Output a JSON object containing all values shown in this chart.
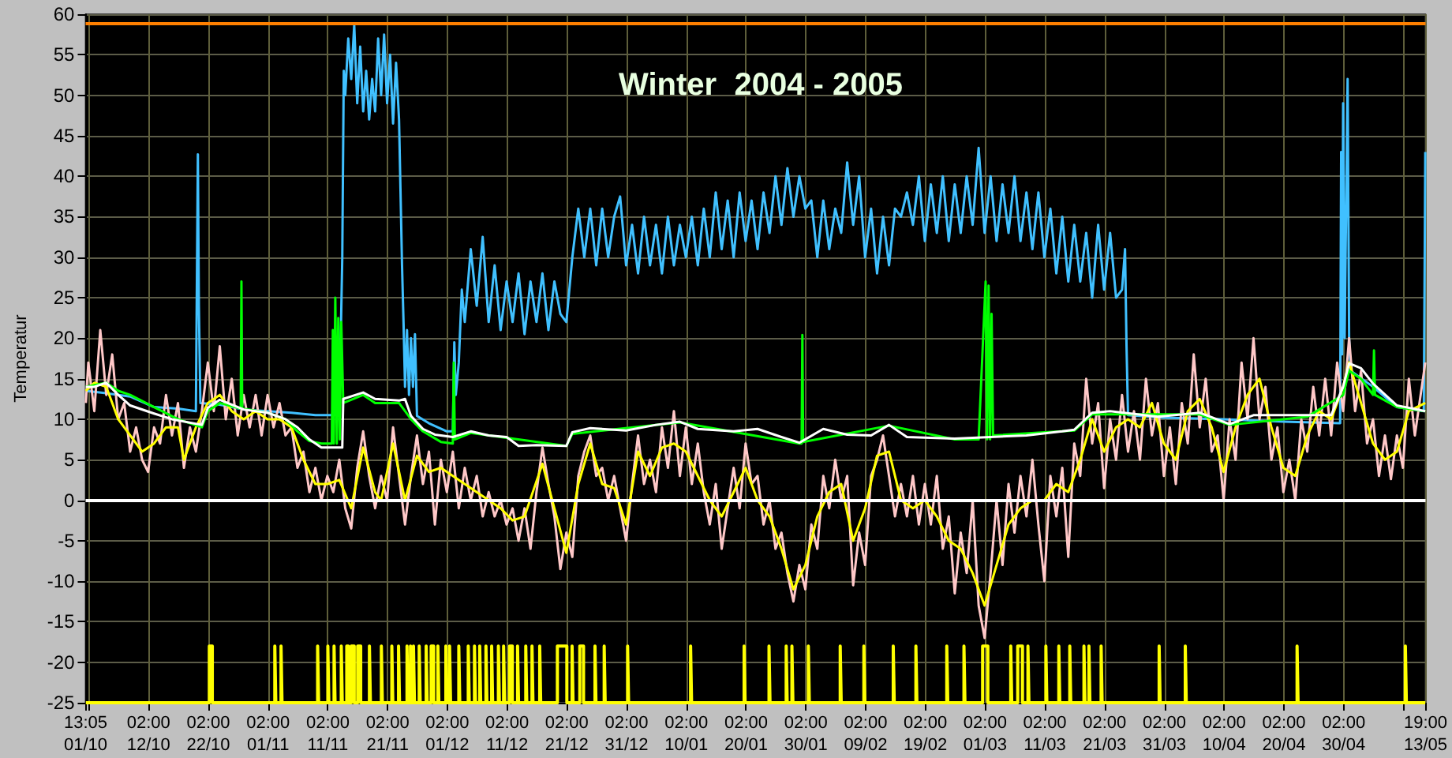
{
  "chart_data": {
    "type": "line",
    "title": "Winter  2004 - 2005",
    "ylabel": "Temperatur",
    "xlim": [
      "2004-10-01T13:05",
      "2005-05-13T19:00"
    ],
    "xticks": [
      {
        "value": "2004-10-01T13:05",
        "label": "13:05\n01/10"
      },
      {
        "value": "2004-10-02T02:00",
        "label": null
      },
      {
        "value": "2004-10-12T02:00",
        "label": "02:00\n12/10"
      },
      {
        "value": "2004-10-22T02:00",
        "label": "02:00\n22/10"
      },
      {
        "value": "2004-11-01T02:00",
        "label": "02:00\n01/11"
      },
      {
        "value": "2004-11-11T02:00",
        "label": "02:00\n11/11"
      },
      {
        "value": "2004-11-21T02:00",
        "label": "02:00\n21/11"
      },
      {
        "value": "2004-12-01T02:00",
        "label": "02:00\n01/12"
      },
      {
        "value": "2004-12-11T02:00",
        "label": "02:00\n11/12"
      },
      {
        "value": "2004-12-21T02:00",
        "label": "02:00\n21/12"
      },
      {
        "value": "2004-12-31T02:00",
        "label": "02:00\n31/12"
      },
      {
        "value": "2005-01-10T02:00",
        "label": "02:00\n10/01"
      },
      {
        "value": "2005-01-20T02:00",
        "label": "02:00\n20/01"
      },
      {
        "value": "2005-01-30T02:00",
        "label": "02:00\n30/01"
      },
      {
        "value": "2005-02-09T02:00",
        "label": "02:00\n09/02"
      },
      {
        "value": "2005-02-19T02:00",
        "label": "02:00\n19/02"
      },
      {
        "value": "2005-03-01T02:00",
        "label": "02:00\n01/03"
      },
      {
        "value": "2005-03-11T02:00",
        "label": "02:00\n11/03"
      },
      {
        "value": "2005-03-21T02:00",
        "label": "02:00\n21/03"
      },
      {
        "value": "2005-03-31T02:00",
        "label": "02:00\n31/03"
      },
      {
        "value": "2005-04-10T02:00",
        "label": "02:00\n10/04"
      },
      {
        "value": "2005-04-20T02:00",
        "label": "02:00\n20/04"
      },
      {
        "value": "2005-04-30T02:00",
        "label": "02:00\n30/04"
      },
      {
        "value": "2005-05-10T02:00",
        "label": null
      },
      {
        "value": "2005-05-13T19:00",
        "label": "19:00\n13/05"
      }
    ],
    "ylim": [
      -25,
      60
    ],
    "yticks": [
      -25,
      -20,
      -15,
      -10,
      -5,
      0,
      5,
      10,
      15,
      20,
      25,
      30,
      35,
      40,
      45,
      50,
      55,
      60
    ],
    "grid": true,
    "ref_lines": [
      {
        "axis": "y",
        "value": 0,
        "color": "#ffffff"
      },
      {
        "axis": "y",
        "value": 58.8,
        "color": "#ff8000"
      }
    ],
    "series": [
      {
        "color": "#40c0ff",
        "x": [
          "2004-10-01T14:00",
          "2004-10-05",
          "2004-10-09",
          "2004-10-13",
          "2004-10-17",
          "2004-10-20",
          "2004-10-20T08:00",
          "2004-10-20T12:00",
          "2004-10-20T18:00",
          "2004-10-24",
          "2004-10-28",
          "2004-11-01",
          "2004-11-05",
          "2004-11-09",
          "2004-11-13",
          "2004-11-13T12:00",
          "2004-11-13T18:00",
          "2004-11-14",
          "2004-11-14T12:00",
          "2004-11-15",
          "2004-11-15T12:00",
          "2004-11-16",
          "2004-11-16T12:00",
          "2004-11-17",
          "2004-11-17T12:00",
          "2004-11-18",
          "2004-11-18T12:00",
          "2004-11-19",
          "2004-11-19T12:00",
          "2004-11-20",
          "2004-11-20T12:00",
          "2004-11-21",
          "2004-11-21T12:00",
          "2004-11-22",
          "2004-11-22T12:00",
          "2004-11-23",
          "2004-11-23T12:00",
          "2004-11-23T18:00",
          "2004-11-24",
          "2004-11-24T08:00",
          "2004-11-24T16:00",
          "2004-11-25",
          "2004-11-25T08:00",
          "2004-11-25T16:00",
          "2004-11-26",
          "2004-11-28",
          "2004-12-01",
          "2004-12-02",
          "2004-12-02T06:00",
          "2004-12-02T12:00",
          "2004-12-03",
          "2004-12-03T12:00",
          "2004-12-04",
          "2004-12-05",
          "2004-12-06",
          "2004-12-07",
          "2004-12-08",
          "2004-12-09",
          "2004-12-10",
          "2004-12-11",
          "2004-12-12",
          "2004-12-13",
          "2004-12-14",
          "2004-12-15",
          "2004-12-16",
          "2004-12-17",
          "2004-12-18",
          "2004-12-19",
          "2004-12-20",
          "2004-12-21",
          "2004-12-22",
          "2004-12-23",
          "2004-12-24",
          "2004-12-25",
          "2004-12-26",
          "2004-12-27",
          "2004-12-28",
          "2004-12-29",
          "2004-12-30",
          "2004-12-31",
          "2005-01-01",
          "2005-01-02",
          "2005-01-03",
          "2005-01-04",
          "2005-01-05",
          "2005-01-06",
          "2005-01-07",
          "2005-01-08",
          "2005-01-09",
          "2005-01-10",
          "2005-01-11",
          "2005-01-12",
          "2005-01-13",
          "2005-01-14",
          "2005-01-15",
          "2005-01-16",
          "2005-01-17",
          "2005-01-18",
          "2005-01-19",
          "2005-01-20",
          "2005-01-21",
          "2005-01-22",
          "2005-01-23",
          "2005-01-24",
          "2005-01-25",
          "2005-01-26",
          "2005-01-27",
          "2005-01-28",
          "2005-01-29",
          "2005-01-30",
          "2005-01-31",
          "2005-02-01",
          "2005-02-02",
          "2005-02-03",
          "2005-02-04",
          "2005-02-05",
          "2005-02-06",
          "2005-02-07",
          "2005-02-08",
          "2005-02-09",
          "2005-02-10",
          "2005-02-11",
          "2005-02-12",
          "2005-02-13",
          "2005-02-14",
          "2005-02-15",
          "2005-02-16",
          "2005-02-17",
          "2005-02-18",
          "2005-02-19",
          "2005-02-20",
          "2005-02-21",
          "2005-02-22",
          "2005-02-23",
          "2005-02-24",
          "2005-02-25",
          "2005-02-26",
          "2005-02-27",
          "2005-02-28",
          "2005-03-01",
          "2005-03-02",
          "2005-03-03",
          "2005-03-04",
          "2005-03-05",
          "2005-03-06",
          "2005-03-07",
          "2005-03-08",
          "2005-03-09",
          "2005-03-10",
          "2005-03-11",
          "2005-03-12",
          "2005-03-13",
          "2005-03-14",
          "2005-03-15",
          "2005-03-16",
          "2005-03-17",
          "2005-03-18",
          "2005-03-19",
          "2005-03-20",
          "2005-03-21",
          "2005-03-22",
          "2005-03-23",
          "2005-03-24",
          "2005-03-24T12:00",
          "2005-03-24T18:00",
          "2005-03-25",
          "2005-03-31",
          "2005-04-10",
          "2005-04-20",
          "2005-04-29T12:00",
          "2005-04-29T16:00",
          "2005-04-29T20:00",
          "2005-04-30",
          "2005-04-30T06:00",
          "2005-04-30T18:00",
          "2005-05-01",
          "2005-05-01T06:00",
          "2005-05-05",
          "2005-05-09",
          "2005-05-13T12:00",
          "2005-05-13T18:00"
        ],
        "values": [
          13.5,
          13.2,
          12.8,
          11.5,
          11.3,
          11,
          42.7,
          24,
          12,
          11.8,
          11.2,
          11,
          10.8,
          10.5,
          10.5,
          30,
          53,
          50,
          57,
          52,
          58.7,
          49,
          56,
          48,
          53,
          47,
          52,
          48,
          57,
          50,
          57.5,
          49,
          55,
          46.5,
          54,
          47,
          29,
          22,
          14,
          21,
          13,
          20,
          14,
          20.5,
          10.4,
          9.5,
          8.5,
          8.5,
          19.5,
          13,
          17,
          26,
          22,
          31,
          24,
          32.5,
          22,
          29,
          21,
          27,
          22,
          28,
          20.5,
          27,
          22,
          28,
          21,
          27,
          23,
          22,
          30,
          36,
          30,
          36,
          29,
          36,
          30,
          35,
          37.5,
          29,
          34,
          28,
          35,
          29,
          34,
          28,
          35,
          29,
          34,
          30,
          35,
          29,
          36,
          30,
          38,
          31,
          37,
          30,
          38,
          32,
          37,
          31,
          38,
          33,
          40,
          34,
          41,
          35,
          40,
          36,
          37,
          30,
          37,
          31,
          36,
          33,
          41.7,
          34,
          40,
          30,
          36,
          28,
          35,
          29,
          36,
          35,
          38,
          34,
          40,
          32,
          39,
          33,
          40,
          32,
          39,
          33,
          40,
          34,
          43.5,
          33,
          40,
          32,
          39,
          33,
          40,
          32,
          38,
          31,
          38,
          30,
          36,
          28,
          35,
          27,
          34,
          27,
          33,
          25,
          34,
          26,
          33,
          25,
          26,
          31,
          19,
          10.5,
          10.2,
          10,
          9.7,
          9.5,
          43,
          18,
          49,
          20,
          52,
          20,
          16,
          14,
          11.5,
          11,
          43
        ]
      },
      {
        "color": "#ffc8c8",
        "x": [
          "2004-10-01T14:00",
          "2004-10-02",
          "2004-10-03",
          "2004-10-04",
          "2004-10-05",
          "2004-10-06",
          "2004-10-07",
          "2004-10-08",
          "2004-10-09",
          "2004-10-10",
          "2004-10-11",
          "2004-10-12",
          "2004-10-13",
          "2004-10-14",
          "2004-10-15",
          "2004-10-16",
          "2004-10-17",
          "2004-10-18",
          "2004-10-19",
          "2004-10-20",
          "2004-10-21",
          "2004-10-22",
          "2004-10-23",
          "2004-10-24",
          "2004-10-25",
          "2004-10-26",
          "2004-10-27",
          "2004-10-28",
          "2004-10-29",
          "2004-10-30",
          "2004-10-31",
          "2004-11-01",
          "2004-11-02",
          "2004-11-03",
          "2004-11-04",
          "2004-11-05",
          "2004-11-06",
          "2004-11-07",
          "2004-11-08",
          "2004-11-09",
          "2004-11-10",
          "2004-11-11",
          "2004-11-12",
          "2004-11-13",
          "2004-11-14",
          "2004-11-15",
          "2004-11-16",
          "2004-11-17",
          "2004-11-18",
          "2004-11-19",
          "2004-11-20",
          "2004-11-21",
          "2004-11-22",
          "2004-11-23",
          "2004-11-24",
          "2004-11-25",
          "2004-11-26",
          "2004-11-27",
          "2004-11-28",
          "2004-11-29",
          "2004-11-30",
          "2004-12-01",
          "2004-12-02",
          "2004-12-03",
          "2004-12-04",
          "2004-12-05",
          "2004-12-06",
          "2004-12-07",
          "2004-12-08",
          "2004-12-09",
          "2004-12-10",
          "2004-12-11",
          "2004-12-12",
          "2004-12-13",
          "2004-12-14",
          "2004-12-15",
          "2004-12-16",
          "2004-12-17",
          "2004-12-18",
          "2004-12-19",
          "2004-12-20",
          "2004-12-21",
          "2004-12-22",
          "2004-12-23",
          "2004-12-24",
          "2004-12-25",
          "2004-12-26",
          "2004-12-27",
          "2004-12-28",
          "2004-12-29",
          "2004-12-30",
          "2004-12-31",
          "2005-01-01",
          "2005-01-02",
          "2005-01-03",
          "2005-01-04",
          "2005-01-05",
          "2005-01-06",
          "2005-01-07",
          "2005-01-08",
          "2005-01-09",
          "2005-01-10",
          "2005-01-11",
          "2005-01-12",
          "2005-01-13",
          "2005-01-14",
          "2005-01-15",
          "2005-01-16",
          "2005-01-17",
          "2005-01-18",
          "2005-01-19",
          "2005-01-20",
          "2005-01-21",
          "2005-01-22",
          "2005-01-23",
          "2005-01-24",
          "2005-01-25",
          "2005-01-26",
          "2005-01-27",
          "2005-01-28",
          "2005-01-29",
          "2005-01-30",
          "2005-01-31",
          "2005-02-01",
          "2005-02-02",
          "2005-02-03",
          "2005-02-04",
          "2005-02-05",
          "2005-02-06",
          "2005-02-07",
          "2005-02-08",
          "2005-02-09",
          "2005-02-10",
          "2005-02-11",
          "2005-02-12",
          "2005-02-13",
          "2005-02-14",
          "2005-02-15",
          "2005-02-16",
          "2005-02-17",
          "2005-02-18",
          "2005-02-19",
          "2005-02-20",
          "2005-02-21",
          "2005-02-22",
          "2005-02-23",
          "2005-02-24",
          "2005-02-25",
          "2005-02-26",
          "2005-02-27",
          "2005-02-28",
          "2005-03-01",
          "2005-03-02",
          "2005-03-03",
          "2005-03-04",
          "2005-03-05",
          "2005-03-06",
          "2005-03-07",
          "2005-03-08",
          "2005-03-09",
          "2005-03-10",
          "2005-03-11",
          "2005-03-12",
          "2005-03-13",
          "2005-03-14",
          "2005-03-15",
          "2005-03-16",
          "2005-03-17",
          "2005-03-18",
          "2005-03-19",
          "2005-03-20",
          "2005-03-21",
          "2005-03-22",
          "2005-03-23",
          "2005-03-24",
          "2005-03-25",
          "2005-03-26",
          "2005-03-27",
          "2005-03-28",
          "2005-03-29",
          "2005-03-30",
          "2005-03-31",
          "2005-04-01",
          "2005-04-02",
          "2005-04-03",
          "2005-04-04",
          "2005-04-05",
          "2005-04-06",
          "2005-04-07",
          "2005-04-08",
          "2005-04-09",
          "2005-04-10",
          "2005-04-11",
          "2005-04-12",
          "2005-04-13",
          "2005-04-14",
          "2005-04-15",
          "2005-04-16",
          "2005-04-17",
          "2005-04-18",
          "2005-04-19",
          "2005-04-20",
          "2005-04-21",
          "2005-04-22",
          "2005-04-23",
          "2005-04-24",
          "2005-04-25",
          "2005-04-26",
          "2005-04-27",
          "2005-04-28",
          "2005-04-29",
          "2005-04-30",
          "2005-05-01",
          "2005-05-02",
          "2005-05-03",
          "2005-05-04",
          "2005-05-05",
          "2005-05-06",
          "2005-05-07",
          "2005-05-08",
          "2005-05-09",
          "2005-05-10",
          "2005-05-11",
          "2005-05-12",
          "2005-05-13T18:00"
        ],
        "values": [
          12,
          17,
          11,
          21,
          13,
          18,
          10,
          12,
          6,
          9,
          5,
          3.5,
          9,
          7,
          13,
          8,
          12,
          4,
          9,
          6,
          11,
          17,
          11,
          19,
          10,
          15,
          8,
          13,
          9,
          13,
          8,
          13,
          9,
          12,
          8,
          9,
          4,
          6,
          1,
          4,
          0,
          3,
          1,
          5,
          -1,
          -3.5,
          4,
          8.5,
          3,
          -1,
          3,
          0,
          9,
          3,
          -3,
          3,
          8,
          2,
          6,
          -3,
          5,
          1,
          6,
          -1,
          4,
          0,
          3,
          -2,
          1,
          -2,
          0,
          -3,
          -1,
          -5,
          -1,
          -6,
          1,
          6.5,
          2,
          -2,
          -8.5,
          -4,
          -7,
          3,
          6,
          8,
          3,
          4,
          0,
          3,
          -1,
          -5,
          2,
          8,
          2,
          5,
          1,
          9,
          4,
          11,
          3,
          9,
          2,
          7,
          1,
          -3,
          2,
          -6,
          -1,
          4,
          -1,
          7,
          2,
          3,
          -3,
          0,
          -6,
          -4,
          -9,
          -12.5,
          -8,
          -11,
          -3,
          -6,
          3,
          -1,
          5,
          0,
          3,
          -10.5,
          -4,
          -8,
          3,
          5,
          8,
          3,
          -2,
          2,
          -2,
          3,
          -3,
          2,
          -3,
          3,
          -6,
          -2,
          -11.5,
          -4,
          -9,
          0,
          -13,
          -17,
          -9,
          0,
          -8,
          2,
          -4,
          3,
          -2,
          5,
          -3,
          -10,
          3,
          -2,
          4,
          -7,
          7,
          3,
          15,
          7,
          12,
          1.5,
          10,
          5,
          13,
          6,
          11,
          5,
          15,
          8,
          12,
          3,
          9,
          2,
          12,
          7,
          18,
          9,
          15,
          6,
          8,
          0,
          10,
          5,
          17,
          10,
          20,
          10,
          14,
          5,
          9,
          1,
          5,
          0,
          10,
          6,
          14,
          8,
          15,
          8,
          17,
          11,
          20,
          11,
          16,
          7,
          10,
          3,
          8,
          2.6,
          8,
          4,
          15,
          8,
          17
        ]
      },
      {
        "color": "#ffff00",
        "x": [
          "2004-10-01T14:00",
          "2004-10-03",
          "2004-10-05",
          "2004-10-07",
          "2004-10-09",
          "2004-10-11",
          "2004-10-13",
          "2004-10-15",
          "2004-10-17",
          "2004-10-18",
          "2004-10-20",
          "2004-10-22",
          "2004-10-24",
          "2004-10-26",
          "2004-10-28",
          "2004-10-30",
          "2004-11-01",
          "2004-11-03",
          "2004-11-05",
          "2004-11-07",
          "2004-11-09",
          "2004-11-11",
          "2004-11-13",
          "2004-11-15",
          "2004-11-17",
          "2004-11-19",
          "2004-11-20",
          "2004-11-22",
          "2004-11-24",
          "2004-11-26",
          "2004-11-28",
          "2004-11-30",
          "2004-12-02",
          "2004-12-04",
          "2004-12-06",
          "2004-12-08",
          "2004-12-10",
          "2004-12-12",
          "2004-12-14",
          "2004-12-17",
          "2004-12-19",
          "2004-12-21",
          "2004-12-23",
          "2004-12-25",
          "2004-12-27",
          "2004-12-29",
          "2004-12-31",
          "2005-01-02",
          "2005-01-04",
          "2005-01-06",
          "2005-01-08",
          "2005-01-10",
          "2005-01-12",
          "2005-01-14",
          "2005-01-16",
          "2005-01-18",
          "2005-01-20",
          "2005-01-22",
          "2005-01-24",
          "2005-01-26",
          "2005-01-28",
          "2005-01-30",
          "2005-02-01",
          "2005-02-03",
          "2005-02-05",
          "2005-02-07",
          "2005-02-09",
          "2005-02-11",
          "2005-02-13",
          "2005-02-15",
          "2005-02-17",
          "2005-02-19",
          "2005-02-21",
          "2005-02-23",
          "2005-02-25",
          "2005-02-27",
          "2005-03-01",
          "2005-03-03",
          "2005-03-05",
          "2005-03-07",
          "2005-03-09",
          "2005-03-11",
          "2005-03-13",
          "2005-03-15",
          "2005-03-17",
          "2005-03-19",
          "2005-03-21",
          "2005-03-23",
          "2005-03-25",
          "2005-03-27",
          "2005-03-29",
          "2005-03-31",
          "2005-04-02",
          "2005-04-04",
          "2005-04-06",
          "2005-04-08",
          "2005-04-10",
          "2005-04-12",
          "2005-04-14",
          "2005-04-16",
          "2005-04-18",
          "2005-04-20",
          "2005-04-22",
          "2005-04-24",
          "2005-04-26",
          "2005-04-28",
          "2005-04-30",
          "2005-05-01",
          "2005-05-03",
          "2005-05-05",
          "2005-05-07",
          "2005-05-09",
          "2005-05-11",
          "2005-05-13T18:00"
        ],
        "values": [
          13.5,
          14.5,
          14,
          10,
          8,
          6,
          7,
          9,
          9,
          5,
          9,
          12,
          13,
          11,
          10,
          11,
          10,
          10,
          9,
          5,
          2,
          2,
          2.5,
          -1,
          6.5,
          1,
          0,
          7,
          0,
          5.5,
          3.5,
          4,
          3,
          2,
          1,
          0,
          -1,
          -2.5,
          -2,
          4.5,
          -1,
          -6.5,
          2,
          7,
          2,
          1.5,
          -3,
          6,
          3,
          6.5,
          7,
          6,
          3,
          0,
          -2,
          1,
          4,
          0,
          -2,
          -6,
          -11,
          -8,
          -2,
          1,
          2,
          -5,
          -1,
          5.5,
          6,
          0,
          -1,
          0,
          -2,
          -5,
          -6,
          -9,
          -13,
          -8,
          -3,
          -1,
          0,
          0,
          2,
          1,
          5,
          10,
          6,
          9,
          10,
          9,
          12,
          7,
          5,
          11,
          12.5,
          9,
          3.5,
          9,
          13,
          15,
          9,
          4,
          3,
          8,
          11,
          10,
          14,
          17,
          12,
          7,
          5,
          6,
          11,
          12
        ]
      },
      {
        "color": "#00ff00",
        "x": [
          "2004-10-01T14:00",
          "2004-10-05",
          "2004-10-07",
          "2004-10-09",
          "2004-10-13",
          "2004-10-17",
          "2004-10-21",
          "2004-10-22",
          "2004-10-24",
          "2004-10-27T12:00",
          "2004-10-27T15:00",
          "2004-10-27T18:00",
          "2004-11-01",
          "2004-11-04",
          "2004-11-06",
          "2004-11-08",
          "2004-11-10",
          "2004-11-11T18:00",
          "2004-11-11T22:00",
          "2004-11-12T02:00",
          "2004-11-12T08:00",
          "2004-11-12T14:00",
          "2004-11-12T20:00",
          "2004-11-13T02:00",
          "2004-11-13T08:00",
          "2004-11-13T16:00",
          "2004-11-17",
          "2004-11-19",
          "2004-11-23",
          "2004-11-25",
          "2004-11-27",
          "2004-11-30",
          "2004-12-02",
          "2004-12-02T04:00",
          "2004-12-02T08:00",
          "2004-12-05",
          "2004-12-11",
          "2004-12-21",
          "2004-12-22",
          "2005-01-09",
          "2005-01-29",
          "2005-01-29T09:00",
          "2005-01-29T12:00",
          "2005-01-29T15:00",
          "2005-02-13",
          "2005-02-24",
          "2005-02-28",
          "2005-03-01T04:00",
          "2005-03-01T10:00",
          "2005-03-01T16:00",
          "2005-03-01T22:00",
          "2005-03-02T04:00",
          "2005-03-02T10:00",
          "2005-03-16",
          "2005-03-19",
          "2005-04-06",
          "2005-04-11",
          "2005-04-24",
          "2005-04-30",
          "2005-05-01",
          "2005-05-03",
          "2005-05-05",
          "2005-05-05T04:00",
          "2005-05-05T08:00",
          "2005-05-09",
          "2005-05-13T18:00"
        ],
        "values": [
          14,
          14.5,
          13.5,
          13,
          11.5,
          10,
          9,
          11,
          12,
          11.3,
          27,
          11.3,
          10.8,
          10,
          8.5,
          7.3,
          7,
          7,
          21,
          7,
          25,
          7,
          22.5,
          7.5,
          22,
          12,
          13,
          12,
          12,
          10,
          8.5,
          7.2,
          7,
          17,
          7.5,
          8.3,
          7.7,
          6.7,
          8.2,
          9.6,
          7,
          7,
          20.4,
          7.2,
          9.2,
          7.5,
          7.5,
          27,
          7.5,
          26.5,
          7.5,
          23,
          8,
          8.6,
          10.6,
          10.6,
          9.3,
          10.3,
          13,
          16,
          15,
          13,
          18.5,
          13,
          11.5,
          11
        ]
      },
      {
        "color": "#ffffff",
        "x": [
          "2004-10-01T14:00",
          "2004-10-03",
          "2004-10-05",
          "2004-10-07",
          "2004-10-09",
          "2004-10-13",
          "2004-10-16",
          "2004-10-21",
          "2004-10-22",
          "2004-10-24",
          "2004-10-28",
          "2004-11-01",
          "2004-11-04",
          "2004-11-06",
          "2004-11-08",
          "2004-11-10",
          "2004-11-13T12:00",
          "2004-11-13T16:00",
          "2004-11-17",
          "2004-11-19",
          "2004-11-23",
          "2004-11-24",
          "2004-11-25",
          "2004-11-27",
          "2004-11-29",
          "2004-12-02",
          "2004-12-05",
          "2004-12-08",
          "2004-12-11",
          "2004-12-13",
          "2004-12-16",
          "2004-12-21",
          "2004-12-22",
          "2004-12-25",
          "2004-12-31",
          "2005-01-05",
          "2005-01-09",
          "2005-01-12",
          "2005-01-18",
          "2005-01-22",
          "2005-01-26",
          "2005-01-29",
          "2005-02-02",
          "2005-02-06",
          "2005-02-10",
          "2005-02-13",
          "2005-02-16",
          "2005-02-24",
          "2005-03-02",
          "2005-03-08",
          "2005-03-14",
          "2005-03-16",
          "2005-03-19",
          "2005-03-22",
          "2005-03-30",
          "2005-04-06",
          "2005-04-11",
          "2005-04-15",
          "2005-04-24",
          "2005-04-28",
          "2005-04-30",
          "2005-05-01",
          "2005-05-03",
          "2005-05-05",
          "2005-05-09",
          "2005-05-13T18:00"
        ],
        "values": [
          14,
          14,
          14.5,
          13,
          11.7,
          10.7,
          10,
          9.3,
          11.4,
          12.4,
          11.2,
          10.8,
          10,
          9,
          7.5,
          6.5,
          6.5,
          12.5,
          13.3,
          12.5,
          12.3,
          12.5,
          10.4,
          8.8,
          8.1,
          7.8,
          8.5,
          8,
          7.8,
          6.7,
          6.8,
          6.7,
          8.4,
          8.9,
          8.6,
          9.3,
          9.7,
          8.8,
          8.5,
          8.8,
          7.8,
          7.1,
          8.8,
          8.1,
          8,
          9.3,
          7.8,
          7.6,
          7.8,
          8,
          8.5,
          8.7,
          10.8,
          11,
          10.3,
          10.8,
          9.4,
          10.5,
          10.5,
          10.5,
          14,
          16.9,
          16.3,
          14.4,
          11.7,
          11
        ]
      },
      {
        "type": "step",
        "color": "#ffff00",
        "x": [
          "2004-10-01T14:00",
          "2004-10-22T06:00",
          "2004-10-22T18:00",
          "2004-11-02T05:00",
          "2004-11-02T09:00",
          "2004-11-03T06:00",
          "2004-11-03T10:00",
          "2004-11-09T09:00",
          "2004-11-09T13:00",
          "2004-11-11T02:00",
          "2004-11-11T06:00",
          "2004-11-12T03:00",
          "2004-11-12T07:00",
          "2004-11-13T08:00",
          "2004-11-13T12:00",
          "2004-11-14T06:00",
          "2004-11-14T12:00",
          "2004-11-15T00:00",
          "2004-11-15T12:00",
          "2004-11-16T02:00",
          "2004-11-16T14:00",
          "2004-11-18T01:00",
          "2004-11-18T05:00",
          "2004-11-20T01:00",
          "2004-11-20T05:00",
          "2004-11-21T19:00",
          "2004-11-21T23:00",
          "2004-11-22T22:00",
          "2004-11-23T02:00",
          "2004-11-24T08:00",
          "2004-11-24T12:00",
          "2004-11-24T22:00",
          "2004-11-25T02:00",
          "2004-11-25T10:00",
          "2004-11-25T14:00",
          "2004-11-26T09:00",
          "2004-11-26T13:00",
          "2004-11-27T13:00",
          "2004-11-27T17:00",
          "2004-11-28T09:00",
          "2004-11-28T19:00",
          "2004-11-29T12:00",
          "2004-11-29T16:00",
          "2004-11-30T20:00",
          "2004-12-01T00:00",
          "2004-12-01T11:00",
          "2004-12-01T15:00",
          "2004-12-03T00:00",
          "2004-12-03T04:00",
          "2004-12-04T14:00",
          "2004-12-04T18:00",
          "2004-12-05T15:00",
          "2004-12-05T19:00",
          "2004-12-06T12:00",
          "2004-12-06T16:00",
          "2004-12-07T13:00",
          "2004-12-07T17:00",
          "2004-12-08T12:00",
          "2004-12-08T16:00",
          "2004-12-09T15:00",
          "2004-12-09T19:00",
          "2004-12-10T12:00",
          "2004-12-10T16:00",
          "2004-12-11T12:00",
          "2004-12-11T23:00",
          "2004-12-12T20:00",
          "2004-12-13T00:00",
          "2004-12-14T05:00",
          "2004-12-14T09:00",
          "2004-12-15T06:00",
          "2004-12-15T10:00",
          "2004-12-16T13:00",
          "2004-12-16T17:00",
          "2004-12-19T12:00",
          "2004-12-21T02:00",
          "2004-12-21T23:00",
          "2004-12-22T03:00",
          "2004-12-23T06:00",
          "2004-12-23T21:00",
          "2004-12-25T19:00",
          "2004-12-25T23:00",
          "2004-12-27T08:00",
          "2004-12-27T12:00",
          "2004-12-31T06:00",
          "2004-12-31T10:00",
          "2005-01-10T19:00",
          "2005-01-10T23:00",
          "2005-01-19T18:00",
          "2005-01-19T22:00",
          "2005-01-23T22:00",
          "2005-01-24T02:00",
          "2005-01-26T19:00",
          "2005-01-26T23:00",
          "2005-01-27T18:00",
          "2005-01-27T22:00",
          "2005-01-30T12:00",
          "2005-01-30T16:00",
          "2005-02-04T20:00",
          "2005-02-05T00:00",
          "2005-02-08T19:00",
          "2005-02-08T23:00",
          "2005-02-13T17:00",
          "2005-02-13T21:00",
          "2005-02-17T12:00",
          "2005-02-17T16:00",
          "2005-02-22T16:00",
          "2005-02-22T20:00",
          "2005-02-25T13:00",
          "2005-02-25T17:00",
          "2005-02-28T16:00",
          "2005-03-01T13:00",
          "2005-03-05T09:00",
          "2005-03-05T13:00",
          "2005-03-06T13:00",
          "2005-03-07T08:00",
          "2005-03-08T06:00",
          "2005-03-08T10:00",
          "2005-03-11T06:00",
          "2005-03-11T10:00",
          "2005-03-13T10:00",
          "2005-03-13T14:00",
          "2005-03-15T06:00",
          "2005-03-15T10:00",
          "2005-03-17T15:00",
          "2005-03-17T19:00",
          "2005-03-18T11:00",
          "2005-03-18T15:00",
          "2005-03-20T12:00",
          "2005-03-20T16:00",
          "2005-03-30T05:00",
          "2005-03-30T09:00",
          "2005-04-03T14:00",
          "2005-04-03T18:00",
          "2005-04-22T07:00",
          "2005-04-22T11:00",
          "2005-05-10T10:00",
          "2005-05-10T14:00",
          "2005-05-13T18:00"
        ],
        "values": [
          -25,
          -18,
          -25,
          -18,
          -25,
          -18,
          -25,
          -18,
          -25,
          -18,
          -25,
          -18,
          -25,
          -18,
          -25,
          -18,
          -25,
          -18,
          -25,
          -18,
          -25,
          -18,
          -25,
          -18,
          -25,
          -18,
          -25,
          -18,
          -25,
          -18,
          -25,
          -18,
          -25,
          -18,
          -25,
          -18,
          -25,
          -18,
          -25,
          -18,
          -25,
          -18,
          -25,
          -18,
          -25,
          -18,
          -25,
          -18,
          -25,
          -18,
          -25,
          -18,
          -25,
          -18,
          -25,
          -18,
          -25,
          -18,
          -25,
          -18,
          -25,
          -18,
          -25,
          -18,
          -25,
          -18,
          -25,
          -18,
          -25,
          -18,
          -25,
          -18,
          -25,
          -18,
          -25,
          -18,
          -25,
          -18,
          -25,
          -18,
          -25,
          -18,
          -25,
          -18,
          -25,
          -18,
          -25,
          -18,
          -25,
          -18,
          -25,
          -18,
          -25,
          -18,
          -25,
          -18,
          -25,
          -18,
          -25,
          -18,
          -25,
          -18,
          -25,
          -18,
          -25,
          -18,
          -25,
          -18,
          -25,
          -18,
          -25,
          -18,
          -25,
          -18,
          -25,
          -18,
          -25,
          -18,
          -25,
          -18,
          -25,
          -18,
          -25,
          -18,
          -25,
          -18,
          -25,
          -18,
          -25,
          -18,
          -25,
          -18,
          -25,
          -18,
          -25,
          -18,
          -25,
          -25
        ]
      }
    ]
  }
}
